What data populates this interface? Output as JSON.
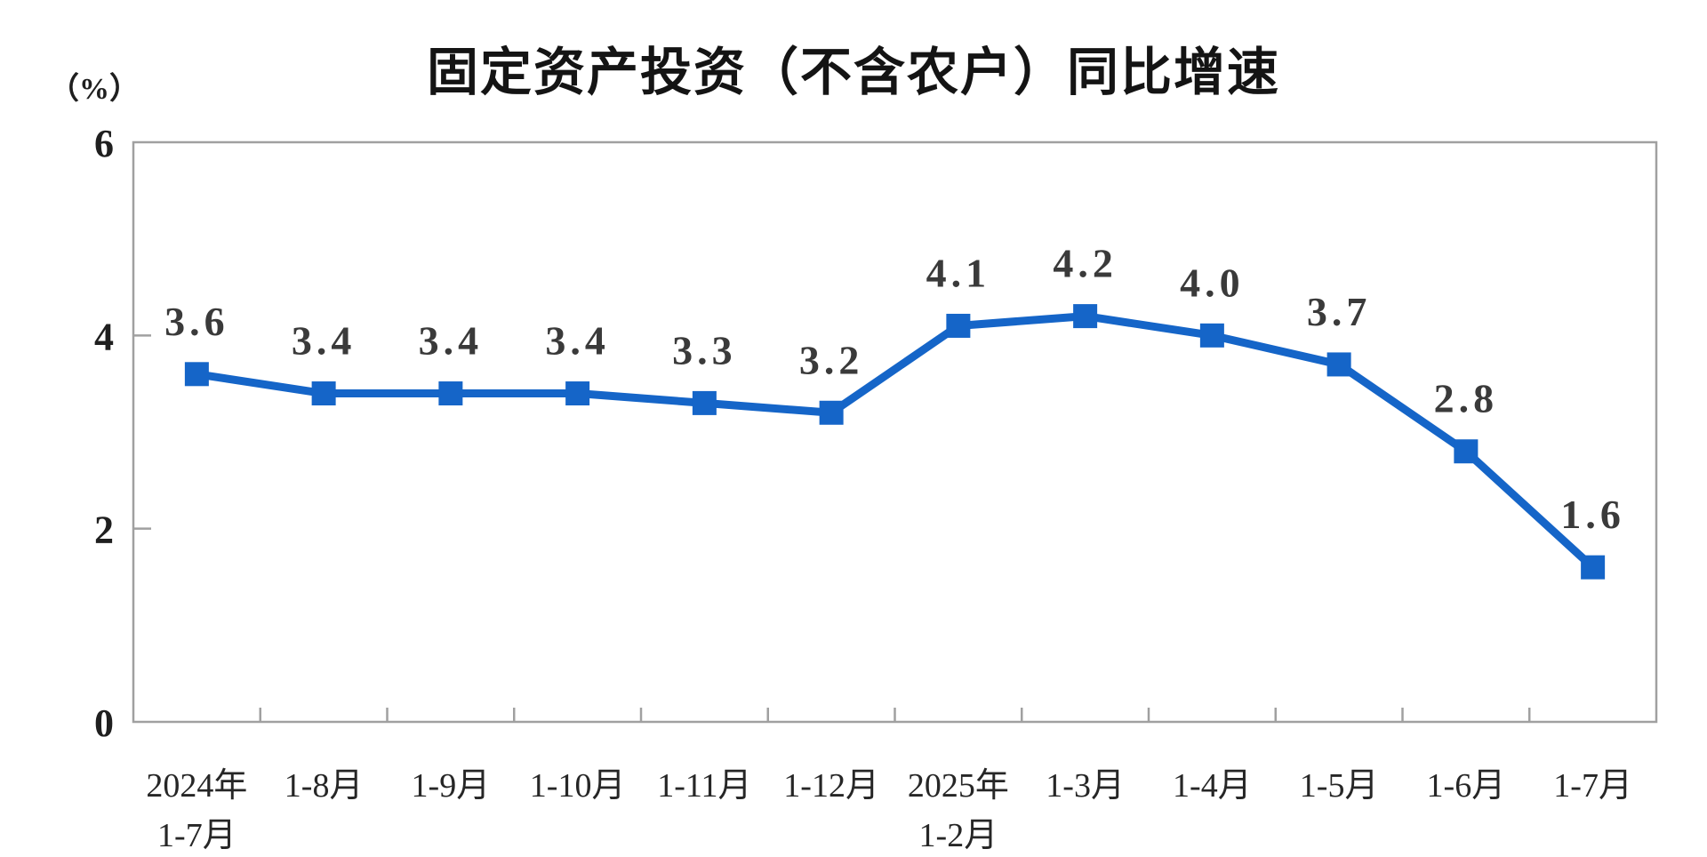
{
  "title": "固定资产投资（不含农户）同比增速",
  "chart_data": {
    "type": "line",
    "title": "固定资产投资（不含农户）同比增速",
    "unit_label": "（%）",
    "categories": [
      [
        "2024年",
        "1-7月"
      ],
      [
        "1-8月"
      ],
      [
        "1-9月"
      ],
      [
        "1-10月"
      ],
      [
        "1-11月"
      ],
      [
        "1-12月"
      ],
      [
        "2025年",
        "1-2月"
      ],
      [
        "1-3月"
      ],
      [
        "1-4月"
      ],
      [
        "1-5月"
      ],
      [
        "1-6月"
      ],
      [
        "1-7月"
      ]
    ],
    "values": [
      3.6,
      3.4,
      3.4,
      3.4,
      3.3,
      3.2,
      4.1,
      4.2,
      4.0,
      3.7,
      2.8,
      1.6
    ],
    "point_labels": [
      "3.6",
      "3.4",
      "3.4",
      "3.4",
      "3.3",
      "3.2",
      "4.1",
      "4.2",
      "4.0",
      "3.7",
      "2.8",
      "1.6"
    ],
    "xlabel": "",
    "ylabel": "（%）",
    "yticks": [
      0,
      2,
      4,
      6
    ],
    "ylim": [
      0,
      6
    ],
    "grid": false,
    "legend_position": "none",
    "line_color": "#1565c8",
    "marker": "square",
    "axis_color": "#a0a0a0",
    "value_label_color": "#3a3a3a",
    "tick_label_color": "#1f1f1f",
    "title_color": "#141414",
    "background_color": "#ffffff"
  }
}
